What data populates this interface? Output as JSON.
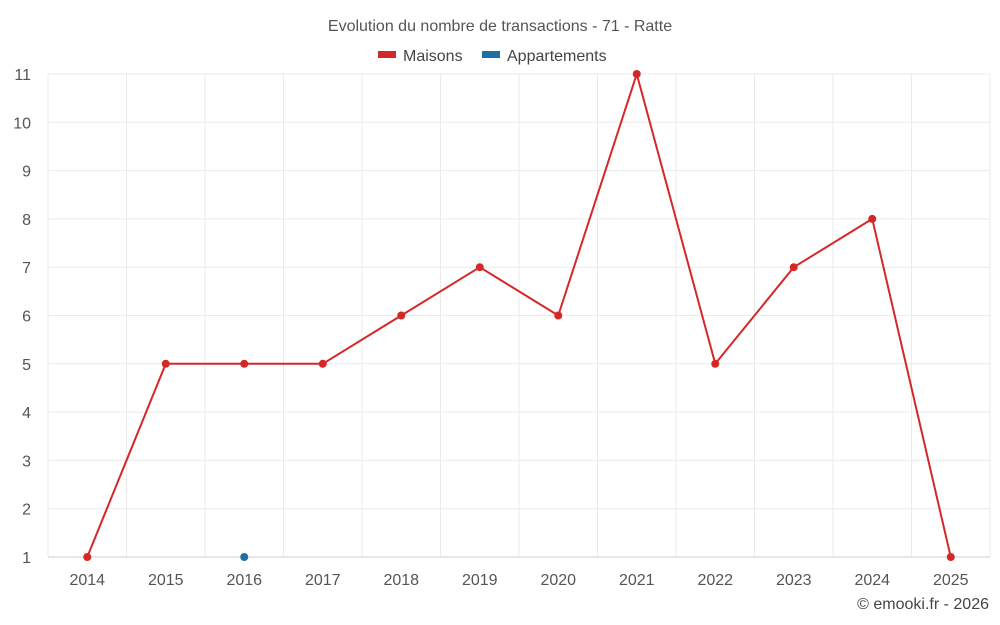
{
  "chart_data": {
    "type": "line",
    "title": "Evolution du nombre de transactions - 71 - Ratte",
    "categories": [
      "2014",
      "2015",
      "2016",
      "2017",
      "2018",
      "2019",
      "2020",
      "2021",
      "2022",
      "2023",
      "2024",
      "2025"
    ],
    "ylim": [
      1,
      11
    ],
    "yticks": [
      1,
      2,
      3,
      4,
      5,
      6,
      7,
      8,
      9,
      10,
      11
    ],
    "grid": true,
    "legend_position": "top-center",
    "series": [
      {
        "name": "Maisons",
        "color": "#d62728",
        "values": [
          1,
          5,
          5,
          5,
          6,
          7,
          6,
          11,
          5,
          7,
          8,
          1
        ]
      },
      {
        "name": "Appartements",
        "color": "#1f6fa3",
        "values": [
          null,
          null,
          1,
          null,
          null,
          null,
          null,
          null,
          null,
          null,
          null,
          null
        ]
      }
    ],
    "credit": "© emooki.fr - 2026"
  }
}
